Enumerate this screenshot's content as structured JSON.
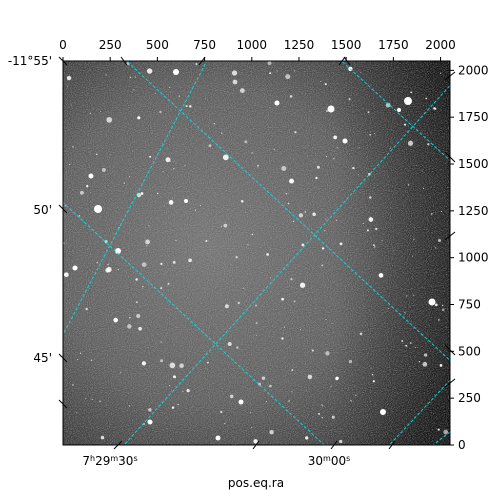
{
  "chart_data": {
    "type": "image",
    "xlabel": "pos.eq.ra",
    "pixel_axes": {
      "x": {
        "range": [
          0,
          2050
        ],
        "ticks": [
          "0",
          "250",
          "500",
          "750",
          "1000",
          "1250",
          "1500",
          "1750",
          "2000"
        ]
      },
      "y": {
        "range": [
          0,
          2050
        ],
        "ticks": [
          "0",
          "250",
          "500",
          "750",
          "1000",
          "1250",
          "1500",
          "1750",
          "2000"
        ]
      }
    },
    "world_axes": {
      "ra_ticks": [
        {
          "h": "7",
          "hsup": "h",
          "m": "29",
          "msup": "m",
          "s": "30",
          "ssup": "s"
        },
        {
          "h": "",
          "hsup": "",
          "m": "30",
          "msup": "m",
          "s": "00",
          "ssup": "s"
        }
      ],
      "dec_ticks": [
        "-11°55'",
        "50'",
        "45'"
      ]
    },
    "grid": true,
    "grid_color": "#00e5e5",
    "image_colormap": "gray"
  }
}
